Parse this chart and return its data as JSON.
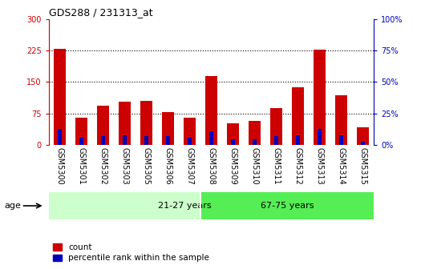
{
  "title": "GDS288 / 231313_at",
  "categories": [
    "GSM5300",
    "GSM5301",
    "GSM5302",
    "GSM5303",
    "GSM5305",
    "GSM5306",
    "GSM5307",
    "GSM5308",
    "GSM5309",
    "GSM5310",
    "GSM5311",
    "GSM5312",
    "GSM5313",
    "GSM5314",
    "GSM5315"
  ],
  "count_values": [
    228,
    65,
    93,
    103,
    106,
    78,
    65,
    165,
    53,
    58,
    88,
    138,
    226,
    118,
    42
  ],
  "percentile_values": [
    13,
    6,
    7,
    8,
    7,
    7,
    6,
    11,
    5,
    5,
    7,
    8,
    13,
    8,
    3
  ],
  "group1_label": "21-27 years",
  "group2_label": "67-75 years",
  "group1_count": 7,
  "group2_count": 8,
  "left_ylim": [
    0,
    300
  ],
  "right_ylim": [
    0,
    100
  ],
  "left_yticks": [
    0,
    75,
    150,
    225,
    300
  ],
  "right_yticks": [
    0,
    25,
    50,
    75,
    100
  ],
  "left_ytick_labels": [
    "0",
    "75",
    "150",
    "225",
    "300"
  ],
  "right_ytick_labels": [
    "0%",
    "25%",
    "50%",
    "75%",
    "100%"
  ],
  "bar_color_red": "#cc0000",
  "bar_color_blue": "#0000bb",
  "group1_bg": "#ccffcc",
  "group2_bg": "#55ee55",
  "xtick_bg": "#bbbbbb",
  "plot_bg": "#ffffff",
  "age_label": "age",
  "legend_count": "count",
  "legend_percentile": "percentile rank within the sample",
  "red_bar_width": 0.55,
  "blue_bar_width": 0.18,
  "dotted_lines": [
    75,
    150,
    225
  ],
  "left_axis_color": "#cc0000",
  "right_axis_color": "#0000bb",
  "title_fontsize": 9,
  "tick_fontsize": 7,
  "legend_fontsize": 7.5
}
